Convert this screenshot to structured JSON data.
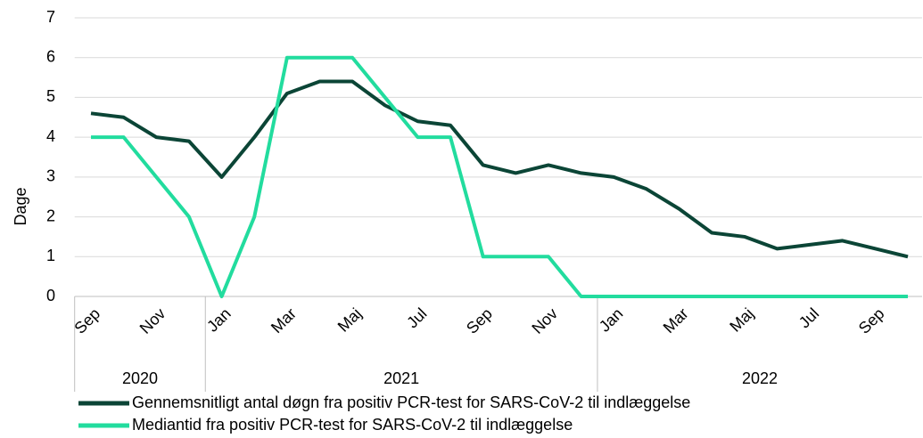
{
  "chart_data": {
    "type": "line",
    "y_label": "Dage",
    "categories": [
      "Sep",
      null,
      "Nov",
      null,
      "Jan",
      null,
      "Mar",
      null,
      "Maj",
      null,
      "Jul",
      null,
      "Sep",
      null,
      "Nov",
      null,
      "Jan",
      null,
      "Mar",
      null,
      "Maj",
      null,
      "Jul",
      null,
      "Sep",
      null
    ],
    "x_groups": [
      {
        "label": "2020",
        "span": 4
      },
      {
        "label": "2021",
        "span": 12
      },
      {
        "label": "2022",
        "span": 10
      }
    ],
    "series": [
      {
        "name": "Gennemsnitligt antal døgn fra positiv PCR-test for SARS-CoV-2 til indlæggelse",
        "color": "#0b4536",
        "values": [
          4.6,
          4.5,
          4.0,
          3.9,
          3.0,
          4.0,
          5.1,
          5.4,
          5.4,
          4.8,
          4.4,
          4.3,
          3.3,
          3.1,
          3.3,
          3.1,
          3.0,
          2.7,
          2.2,
          1.6,
          1.5,
          1.2,
          1.3,
          1.4,
          1.2,
          1.0
        ]
      },
      {
        "name": "Mediantid fra positiv PCR-test for SARS-CoV-2 til indlæggelse",
        "color": "#22dc9e",
        "values": [
          4,
          4,
          3,
          2,
          0,
          2,
          6,
          6,
          6,
          5,
          4,
          4,
          1,
          1,
          1,
          0,
          0,
          0,
          0,
          0,
          0,
          0,
          0,
          0,
          0,
          0
        ]
      }
    ],
    "ylim": [
      0,
      7
    ],
    "yticks": [
      0,
      1,
      2,
      3,
      4,
      5,
      6,
      7
    ],
    "grid": true
  }
}
